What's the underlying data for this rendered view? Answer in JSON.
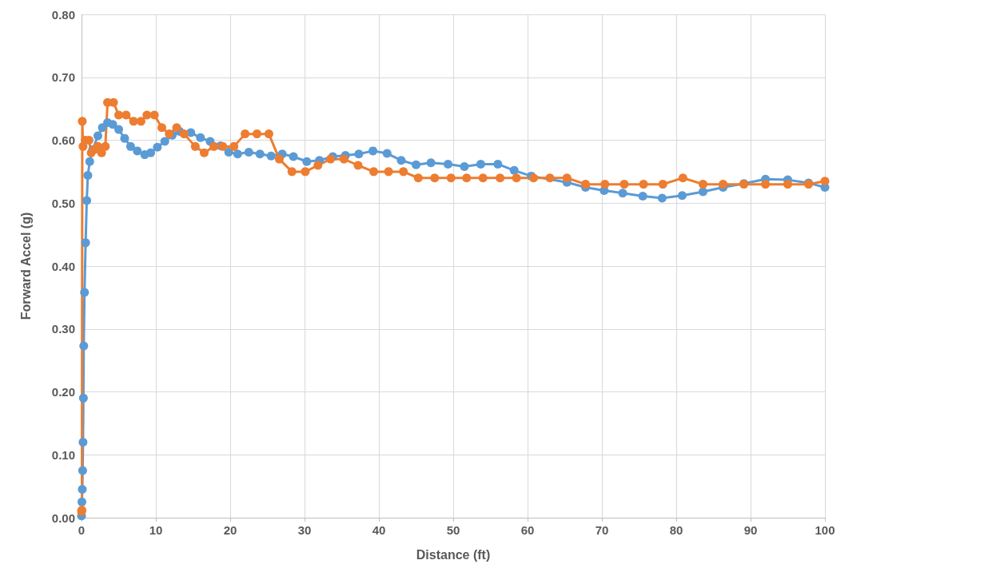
{
  "chart_data": {
    "type": "line",
    "xlabel": "Distance (ft)",
    "ylabel": "Forward Accel (g)",
    "xlim": [
      0,
      100
    ],
    "xticks": [
      0,
      10,
      20,
      30,
      40,
      50,
      60,
      70,
      80,
      90,
      100
    ],
    "ylim": [
      0,
      0.8
    ],
    "yticks": [
      {
        "value": 0,
        "label": "0.00"
      },
      {
        "value": 0.1,
        "label": "0.10"
      },
      {
        "value": 0.2,
        "label": "0.20"
      },
      {
        "value": 0.3,
        "label": "0.30"
      },
      {
        "value": 0.4,
        "label": "0.40"
      },
      {
        "value": 0.5,
        "label": "0.50"
      },
      {
        "value": 0.6,
        "label": "0.60"
      },
      {
        "value": 0.7,
        "label": "0.70"
      },
      {
        "value": 0.8,
        "label": "0.80"
      }
    ],
    "grid": true,
    "marker": "circle",
    "line_style": "solid",
    "series": [
      {
        "color": "#5b9bd5",
        "x": [
          0,
          0.05,
          0.1,
          0.15,
          0.2,
          0.25,
          0.3,
          0.4,
          0.55,
          0.7,
          0.85,
          1.1,
          1.5,
          2.2,
          2.8,
          3.5,
          4.2,
          5,
          5.8,
          6.6,
          7.5,
          8.5,
          9.3,
          10.2,
          11.2,
          12.2,
          13.2,
          14.7,
          16,
          17.3,
          18.7,
          19.8,
          21,
          22.5,
          24,
          25.5,
          27,
          28.5,
          30.3,
          32,
          33.8,
          35.5,
          37.3,
          39.2,
          41.1,
          43,
          45,
          47,
          49.3,
          51.5,
          53.7,
          56,
          58.2,
          60.5,
          63,
          65.3,
          67.8,
          70.3,
          72.8,
          75.5,
          78.1,
          80.8,
          83.6,
          86.3,
          89.1,
          92,
          95,
          97.8,
          100
        ],
        "values": [
          0.003,
          0.025,
          0.045,
          0.075,
          0.12,
          0.19,
          0.273,
          0.358,
          0.437,
          0.504,
          0.544,
          0.566,
          0.585,
          0.607,
          0.62,
          0.628,
          0.625,
          0.617,
          0.603,
          0.59,
          0.583,
          0.577,
          0.58,
          0.589,
          0.598,
          0.608,
          0.614,
          0.612,
          0.604,
          0.598,
          0.591,
          0.581,
          0.578,
          0.581,
          0.578,
          0.575,
          0.578,
          0.574,
          0.566,
          0.568,
          0.574,
          0.576,
          0.578,
          0.583,
          0.579,
          0.568,
          0.561,
          0.564,
          0.562,
          0.558,
          0.562,
          0.562,
          0.552,
          0.543,
          null,
          0.533,
          0.525,
          0.52,
          0.516,
          0.511,
          0.508,
          0.512,
          0.518,
          0.525,
          0.531,
          0.538,
          0.537,
          0.532,
          0.525
        ]
      },
      {
        "color": "#ed7d31",
        "x": [
          0,
          0.05,
          0.1,
          0.2,
          0.5,
          1,
          1.3,
          1.7,
          2.2,
          2.7,
          3.2,
          3.5,
          4.3,
          5,
          6,
          7,
          8,
          8.8,
          9.8,
          10.8,
          11.8,
          12.8,
          13.8,
          15.3,
          16.5,
          17.8,
          19,
          20.5,
          22,
          23.6,
          25.2,
          26.6,
          28.3,
          30.1,
          31.8,
          33.5,
          35.3,
          37.2,
          39.3,
          41.3,
          43.3,
          45.3,
          47.5,
          49.7,
          51.8,
          54,
          56.3,
          58.5,
          60.8,
          63,
          65.3,
          67.8,
          70.4,
          73,
          75.6,
          78.2,
          80.9,
          83.6,
          86.3,
          89.1,
          92,
          95,
          97.8,
          100
        ],
        "values": [
          0.01,
          0.012,
          0.63,
          0.59,
          0.6,
          0.6,
          0.58,
          0.585,
          0.59,
          0.58,
          0.59,
          0.66,
          0.66,
          0.64,
          0.64,
          0.63,
          0.63,
          0.64,
          0.64,
          0.62,
          0.61,
          0.62,
          0.61,
          0.59,
          0.58,
          0.59,
          0.59,
          0.59,
          0.61,
          0.61,
          0.61,
          0.57,
          0.55,
          0.55,
          0.56,
          0.57,
          0.57,
          0.56,
          0.55,
          0.55,
          0.55,
          0.54,
          0.54,
          0.54,
          0.54,
          0.54,
          0.54,
          0.54,
          0.54,
          0.54,
          0.54,
          0.53,
          0.53,
          0.53,
          0.53,
          0.53,
          0.54,
          0.53,
          0.53,
          0.53,
          0.53,
          0.53,
          0.53,
          0.535
        ]
      }
    ]
  }
}
